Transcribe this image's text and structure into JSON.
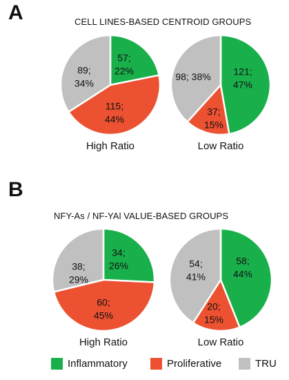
{
  "panels": [
    {
      "letter": "A",
      "title": "CELL LINES-BASED CENTROID GROUPS"
    },
    {
      "letter": "B",
      "title": "NFY-As / NF-YAl VALUE-BASED GROUPS"
    }
  ],
  "colors": {
    "Inflammatory": "#19b04b",
    "Proliferative": "#ec5131",
    "TRU": "#c0c0c0"
  },
  "legend": [
    {
      "label": "Inflammatory",
      "color": "#19b04b"
    },
    {
      "label": "Proliferative",
      "color": "#ec5131"
    },
    {
      "label": "TRU",
      "color": "#c0c0c0"
    }
  ],
  "chart_data": [
    {
      "type": "pie",
      "title": "High Ratio",
      "panel": "A",
      "slices": [
        {
          "category": "Inflammatory",
          "count": 57,
          "percent": 22,
          "label_lines": [
            "57;",
            "22%"
          ]
        },
        {
          "category": "Proliferative",
          "count": 115,
          "percent": 44,
          "label_lines": [
            "115;",
            "44%"
          ]
        },
        {
          "category": "TRU",
          "count": 89,
          "percent": 34,
          "label_lines": [
            "89;",
            "34%"
          ]
        }
      ]
    },
    {
      "type": "pie",
      "title": "Low Ratio",
      "panel": "A",
      "slices": [
        {
          "category": "Inflammatory",
          "count": 121,
          "percent": 47,
          "label_lines": [
            "121;",
            "47%"
          ]
        },
        {
          "category": "Proliferative",
          "count": 37,
          "percent": 15,
          "label_lines": [
            "37;",
            "15%"
          ]
        },
        {
          "category": "TRU",
          "count": 98,
          "percent": 38,
          "label_lines": [
            "98; 38%"
          ]
        }
      ]
    },
    {
      "type": "pie",
      "title": "High Ratio",
      "panel": "B",
      "slices": [
        {
          "category": "Inflammatory",
          "count": 34,
          "percent": 26,
          "label_lines": [
            "34;",
            "26%"
          ]
        },
        {
          "category": "Proliferative",
          "count": 60,
          "percent": 45,
          "label_lines": [
            "60;",
            "45%"
          ]
        },
        {
          "category": "TRU",
          "count": 38,
          "percent": 29,
          "label_lines": [
            "38;",
            "29%"
          ]
        }
      ]
    },
    {
      "type": "pie",
      "title": "Low Ratio",
      "panel": "B",
      "slices": [
        {
          "category": "Inflammatory",
          "count": 58,
          "percent": 44,
          "label_lines": [
            "58;",
            "44%"
          ]
        },
        {
          "category": "Proliferative",
          "count": 20,
          "percent": 15,
          "label_lines": [
            "20;",
            "15%"
          ]
        },
        {
          "category": "TRU",
          "count": 54,
          "percent": 41,
          "label_lines": [
            "54;",
            "41%"
          ]
        }
      ]
    }
  ]
}
